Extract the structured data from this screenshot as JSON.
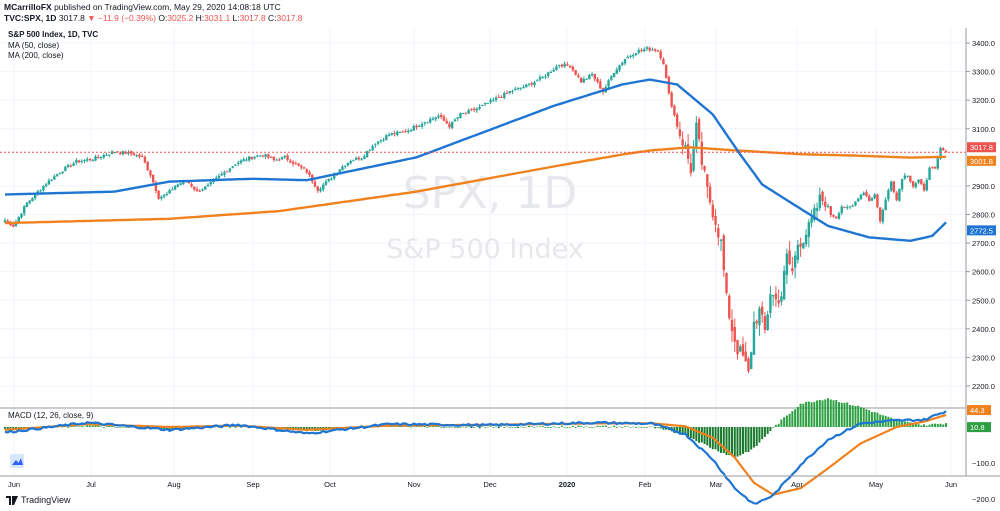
{
  "header": {
    "publisher": "MCarrilloFX",
    "published_text": "published on TradingView.com, May 29, 2020 14:08:18 UTC",
    "symbol": "TVC:SPX, 1D",
    "last": "3017.8",
    "change": "▼ −11.9 (−0.39%)",
    "o_label": "O:",
    "o": "3025.2",
    "h_label": "H:",
    "h": "3031.1",
    "l_label": "L:",
    "l": "3017.8",
    "c_label": "C:",
    "c": "3017.8"
  },
  "legend": {
    "title": "S&P 500 Index, 1D, TVC",
    "ma50": "MA (50, close)",
    "ma200": "MA (200, close)"
  },
  "watermark": {
    "symbol": "SPX, 1D",
    "name": "S&P 500 Index"
  },
  "branding": "TradingView",
  "colors": {
    "up": "#26a69a",
    "down": "#ef5350",
    "ma50": "#1e75d2",
    "ma200": "#f0821e",
    "last_price": "#ef5350",
    "macd_line": "#1e75d2",
    "signal_line": "#f0821e",
    "hist_up": "#2ea043",
    "hist_down": "#1a7a2e"
  },
  "chart_data": [
    {
      "type": "candlestick",
      "title": "S&P 500 Index, 1D, TVC",
      "x_tick_labels": [
        "Jun",
        "Jul",
        "Aug",
        "Sep",
        "Oct",
        "Nov",
        "Dec",
        "2020",
        "Feb",
        "Mar",
        "Apr",
        "May",
        "Jun"
      ],
      "y_tick_labels": [
        "3400.0",
        "3300.0",
        "3200.0",
        "3100.0",
        "2900.0",
        "2800.0",
        "2700.0",
        "2600.0",
        "2500.0",
        "2400.0",
        "2300.0",
        "2200.0"
      ],
      "ylim": [
        2140,
        3440
      ],
      "anchors_close": [
        [
          0,
          2780
        ],
        [
          3,
          2760
        ],
        [
          8,
          2840
        ],
        [
          14,
          2900
        ],
        [
          20,
          2950
        ],
        [
          26,
          2985
        ],
        [
          32,
          2995
        ],
        [
          40,
          3020
        ],
        [
          46,
          3013
        ],
        [
          50,
          3000
        ],
        [
          53,
          2940
        ],
        [
          56,
          2860
        ],
        [
          59,
          2870
        ],
        [
          62,
          2900
        ],
        [
          66,
          2920
        ],
        [
          70,
          2880
        ],
        [
          74,
          2900
        ],
        [
          79,
          2940
        ],
        [
          84,
          2978
        ],
        [
          88,
          2995
        ],
        [
          94,
          3010
        ],
        [
          98,
          2990
        ],
        [
          102,
          3000
        ],
        [
          106,
          2975
        ],
        [
          110,
          2950
        ],
        [
          114,
          2888
        ],
        [
          118,
          2920
        ],
        [
          122,
          2960
        ],
        [
          126,
          2990
        ],
        [
          130,
          3000
        ],
        [
          135,
          3050
        ],
        [
          140,
          3080
        ],
        [
          146,
          3090
        ],
        [
          152,
          3120
        ],
        [
          158,
          3145
        ],
        [
          162,
          3110
        ],
        [
          166,
          3150
        ],
        [
          172,
          3170
        ],
        [
          178,
          3200
        ],
        [
          184,
          3230
        ],
        [
          190,
          3250
        ],
        [
          196,
          3280
        ],
        [
          202,
          3325
        ],
        [
          206,
          3320
        ],
        [
          210,
          3265
        ],
        [
          214,
          3290
        ],
        [
          218,
          3230
        ],
        [
          222,
          3300
        ],
        [
          226,
          3345
        ],
        [
          230,
          3370
        ],
        [
          234,
          3380
        ],
        [
          238,
          3375
        ],
        [
          240,
          3330
        ],
        [
          242,
          3220
        ],
        [
          245,
          3110
        ],
        [
          248,
          3030
        ],
        [
          250,
          2960
        ],
        [
          252,
          3100
        ],
        [
          254,
          2980
        ],
        [
          256,
          2880
        ],
        [
          259,
          2780
        ],
        [
          261,
          2700
        ],
        [
          263,
          2500
        ],
        [
          265,
          2400
        ],
        [
          267,
          2330
        ],
        [
          269,
          2300
        ],
        [
          271,
          2240
        ],
        [
          273,
          2420
        ],
        [
          275,
          2460
        ],
        [
          277,
          2390
        ],
        [
          279,
          2530
        ],
        [
          281,
          2500
        ],
        [
          283,
          2520
        ],
        [
          285,
          2650
        ],
        [
          287,
          2600
        ],
        [
          289,
          2700
        ],
        [
          291,
          2720
        ],
        [
          293,
          2750
        ],
        [
          295,
          2800
        ],
        [
          297,
          2850
        ],
        [
          299,
          2850
        ],
        [
          301,
          2800
        ],
        [
          303,
          2790
        ],
        [
          305,
          2830
        ],
        [
          307,
          2820
        ],
        [
          309,
          2830
        ],
        [
          311,
          2860
        ],
        [
          313,
          2880
        ],
        [
          315,
          2850
        ],
        [
          317,
          2870
        ],
        [
          319,
          2780
        ],
        [
          321,
          2850
        ],
        [
          323,
          2920
        ],
        [
          325,
          2850
        ],
        [
          327,
          2930
        ],
        [
          329,
          2940
        ],
        [
          331,
          2900
        ],
        [
          333,
          2920
        ],
        [
          335,
          2880
        ],
        [
          337,
          2970
        ],
        [
          339,
          2955
        ],
        [
          341,
          3030
        ],
        [
          343,
          3017.8
        ]
      ],
      "series": [
        {
          "name": "MA (50, close)",
          "last_value": 2772.5
        },
        {
          "name": "MA (200, close)",
          "last_value": 3001.8
        }
      ],
      "last_price": 3017.8,
      "price_labels": [
        "3017.8",
        "3001.8",
        "2772.5"
      ]
    },
    {
      "type": "line+bar",
      "title": "MACD (12, 26, close, 9)",
      "y_tick_labels": [
        "−100.0",
        "−200.0"
      ],
      "ylim": [
        -235,
        50
      ],
      "anchors_macd": [
        [
          0,
          -15
        ],
        [
          30,
          12
        ],
        [
          60,
          -8
        ],
        [
          85,
          6
        ],
        [
          110,
          -18
        ],
        [
          140,
          8
        ],
        [
          175,
          5
        ],
        [
          215,
          12
        ],
        [
          236,
          9
        ],
        [
          248,
          -20
        ],
        [
          258,
          -90
        ],
        [
          266,
          -170
        ],
        [
          273,
          -215
        ],
        [
          280,
          -190
        ],
        [
          290,
          -105
        ],
        [
          300,
          -35
        ],
        [
          312,
          10
        ],
        [
          325,
          18
        ],
        [
          335,
          20
        ],
        [
          343,
          44.3
        ]
      ],
      "anchors_signal": [
        [
          0,
          -8
        ],
        [
          30,
          8
        ],
        [
          60,
          0
        ],
        [
          85,
          4
        ],
        [
          110,
          -8
        ],
        [
          140,
          4
        ],
        [
          175,
          6
        ],
        [
          215,
          10
        ],
        [
          236,
          10
        ],
        [
          248,
          2
        ],
        [
          258,
          -30
        ],
        [
          266,
          -85
        ],
        [
          273,
          -155
        ],
        [
          280,
          -188
        ],
        [
          290,
          -170
        ],
        [
          300,
          -115
        ],
        [
          312,
          -45
        ],
        [
          325,
          0
        ],
        [
          335,
          15
        ],
        [
          343,
          33.5
        ]
      ],
      "labels": [
        "44.3",
        "10.8"
      ]
    }
  ]
}
